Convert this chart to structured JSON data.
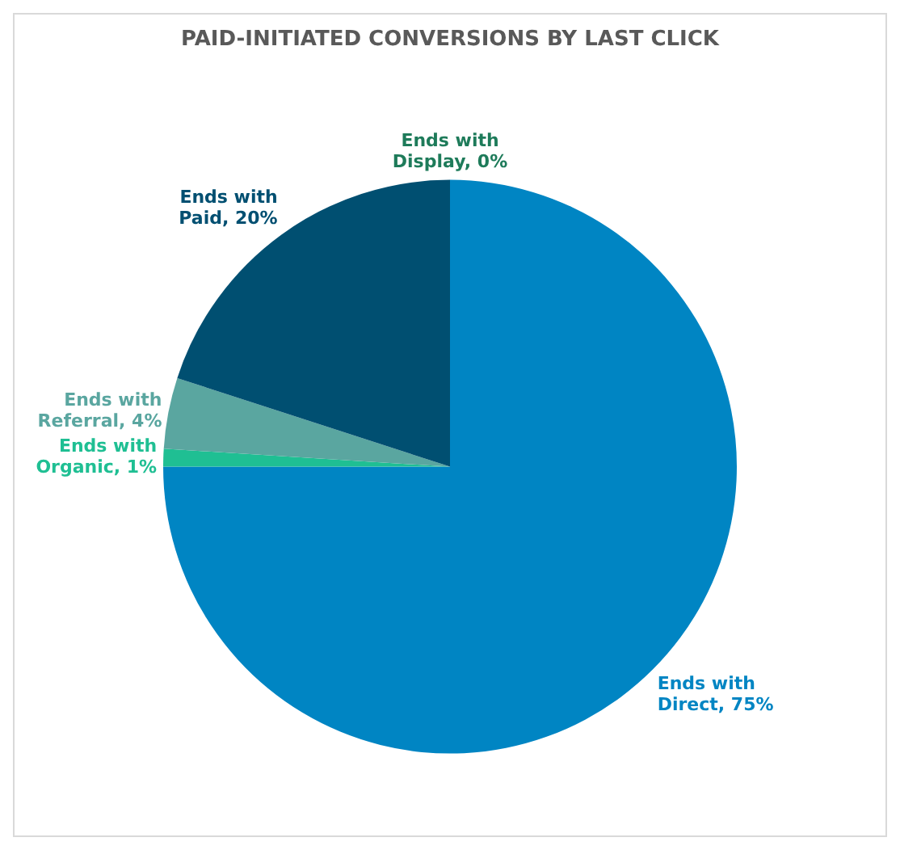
{
  "chart_data": {
    "type": "pie",
    "title": "PAID-INITIATED CONVERSIONS BY LAST CLICK",
    "categories": [
      "Ends with Direct",
      "Ends with Organic",
      "Ends with Referral",
      "Ends with Paid",
      "Ends with Display"
    ],
    "values": [
      75,
      1,
      4,
      20,
      0
    ],
    "colors": [
      "#0085c3",
      "#1fbf93",
      "#5aa6a0",
      "#004f71",
      "#1e7b5a"
    ],
    "value_labels": [
      ", 75%",
      ", 1%",
      ", 4%",
      ", 20%",
      ", 0%"
    ],
    "legend": false
  }
}
